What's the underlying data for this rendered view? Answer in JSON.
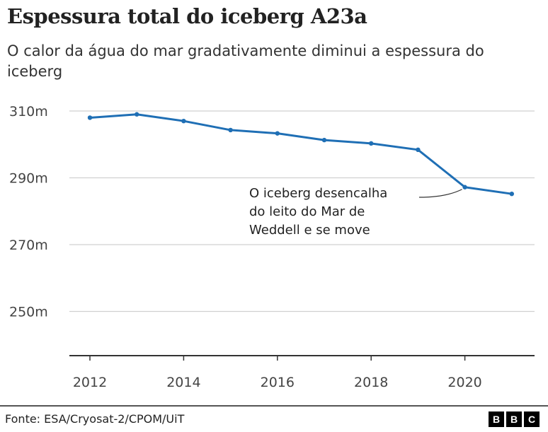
{
  "title": "Espessura total do iceberg A23a",
  "subtitle": "O calor da água do mar gradativamente diminui a espessura do iceberg",
  "source": "Fonte: ESA/Cryosat-2/CPOM/UiT",
  "logo": "BBC",
  "chart_data": {
    "type": "line",
    "title": "Espessura total do iceberg A23a",
    "subtitle": "O calor da água do mar gradativamente diminui a espessura do iceberg",
    "x": [
      2012,
      2013,
      2014,
      2015,
      2016,
      2017,
      2018,
      2019,
      2020,
      2021
    ],
    "series": [
      {
        "values": [
          308,
          309,
          307,
          304.3,
          303.3,
          301.3,
          300.3,
          298.4,
          287.2,
          285.2
        ],
        "color": "#1f6fb5"
      }
    ],
    "y_ticks": [
      310,
      290,
      270,
      250
    ],
    "y_tick_labels": [
      "310m",
      "290m",
      "270m",
      "250m"
    ],
    "x_ticks": [
      2012,
      2014,
      2016,
      2018,
      2020
    ],
    "x_tick_labels": [
      "2012",
      "2014",
      "2016",
      "2018",
      "2020"
    ],
    "ylim": [
      237,
      310
    ],
    "xlim": [
      2011.6,
      2021.5
    ],
    "grid": true,
    "annotation": {
      "x": 2020,
      "y": 287.2,
      "lines": [
        "O iceberg desencalha",
        "do leito do Mar de",
        "Weddell e se move"
      ]
    }
  }
}
